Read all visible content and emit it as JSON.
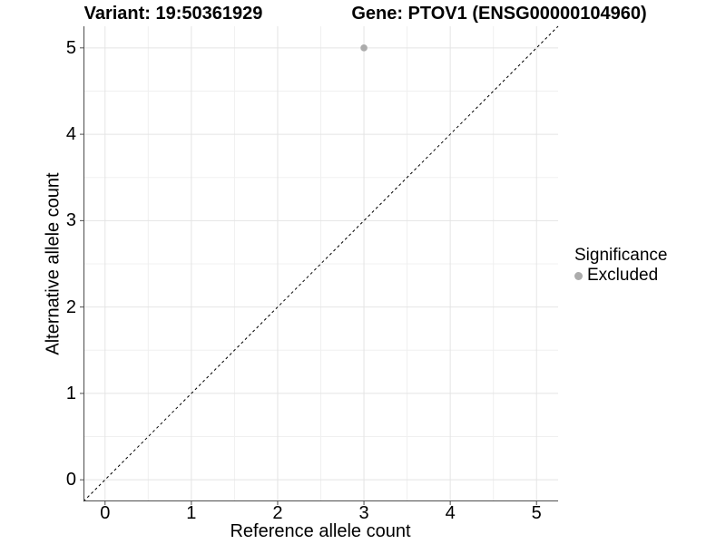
{
  "colors": {
    "background": "#ffffff",
    "point": "#acacac",
    "grid_major": "#e4e4e4",
    "grid_minor": "#f0f0f0",
    "axis_line": "#4d4d4d",
    "tick_mark": "#4d4d4d",
    "identity_line": "#000000",
    "text": "#000000"
  },
  "chart_data": {
    "type": "scatter",
    "title_left": "Variant: 19:50361929",
    "title_right": "Gene: PTOV1 (ENSG00000104960)",
    "xlabel": "Reference allele count",
    "ylabel": "Alternative allele count",
    "xlim": [
      -0.25,
      5.25
    ],
    "ylim": [
      -0.25,
      5.25
    ],
    "xticks": [
      0,
      1,
      2,
      3,
      4,
      5
    ],
    "yticks": [
      0,
      1,
      2,
      3,
      4,
      5
    ],
    "x_minor": [
      0.5,
      1.5,
      2.5,
      3.5,
      4.5
    ],
    "y_minor": [
      0.5,
      1.5,
      2.5,
      3.5,
      4.5
    ],
    "grid": "on",
    "identity_line": {
      "style": "dashed",
      "from": [
        -0.25,
        -0.25
      ],
      "to": [
        5.25,
        5.25
      ]
    },
    "points": [
      {
        "x": 3,
        "y": 5,
        "significance": "Excluded"
      }
    ],
    "legend": {
      "title": "Significance",
      "position": "right",
      "items": [
        {
          "label": "Excluded",
          "color": "#acacac"
        }
      ]
    }
  }
}
